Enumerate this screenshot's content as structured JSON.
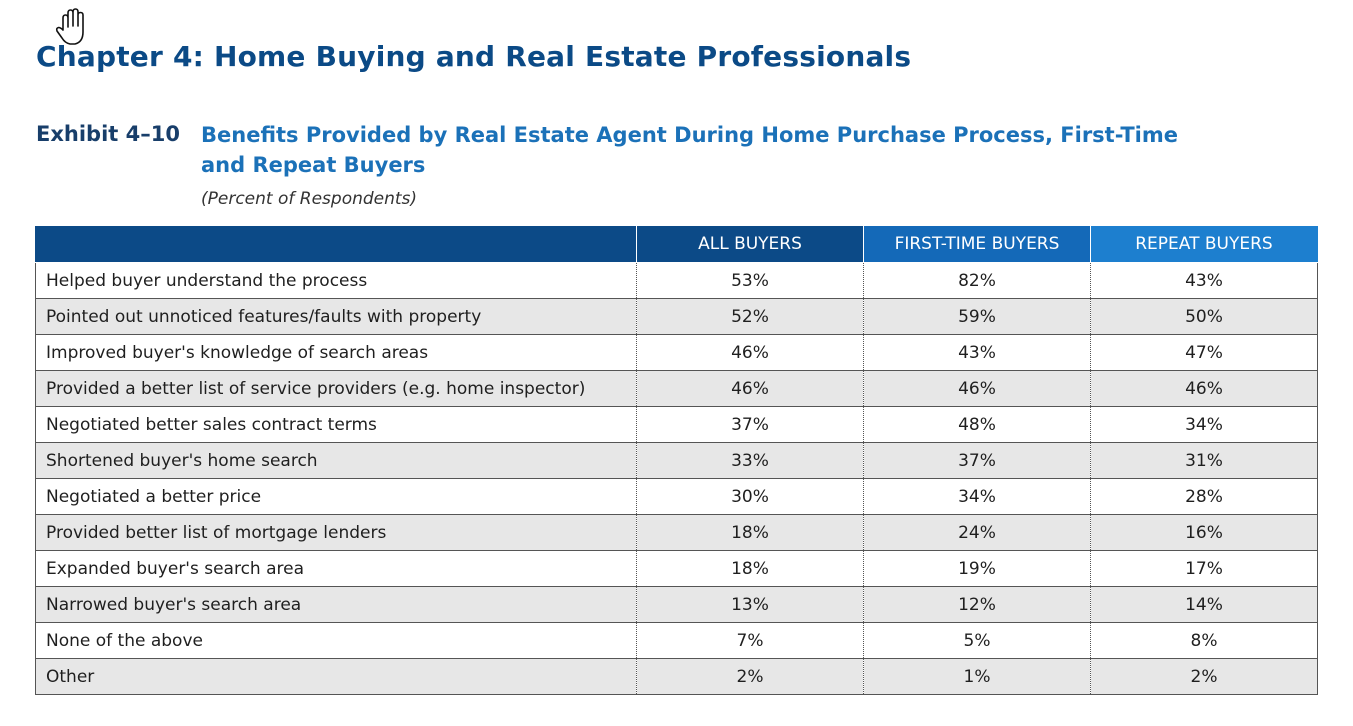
{
  "chapter_title": "Chapter 4:  Home Buying and Real Estate Professionals",
  "exhibit": {
    "label": "Exhibit 4–10",
    "title": "Benefits Provided by Real Estate Agent During Home Purchase Process, First-Time and Repeat Buyers",
    "subtitle": "(Percent of Respondents)"
  },
  "table": {
    "columns": [
      "",
      "ALL BUYERS",
      "FIRST-TIME BUYERS",
      "REPEAT BUYERS"
    ],
    "rows": [
      {
        "label": "Helped buyer understand the process",
        "all": "53%",
        "first": "82%",
        "repeat": "43%"
      },
      {
        "label": "Pointed out unnoticed features/faults with property",
        "all": "52%",
        "first": "59%",
        "repeat": "50%"
      },
      {
        "label": "Improved buyer's knowledge of search areas",
        "all": "46%",
        "first": "43%",
        "repeat": "47%"
      },
      {
        "label": "Provided a better list of service providers (e.g. home inspector)",
        "all": "46%",
        "first": "46%",
        "repeat": "46%"
      },
      {
        "label": "Negotiated better sales contract terms",
        "all": "37%",
        "first": "48%",
        "repeat": "34%"
      },
      {
        "label": "Shortened buyer's home search",
        "all": "33%",
        "first": "37%",
        "repeat": "31%"
      },
      {
        "label": "Negotiated a better price",
        "all": "30%",
        "first": "34%",
        "repeat": "28%"
      },
      {
        "label": "Provided better list of mortgage lenders",
        "all": "18%",
        "first": "24%",
        "repeat": "16%"
      },
      {
        "label": "Expanded buyer's search area",
        "all": "18%",
        "first": "19%",
        "repeat": "17%"
      },
      {
        "label": "Narrowed buyer's search area",
        "all": "13%",
        "first": "12%",
        "repeat": "14%"
      },
      {
        "label": "None of the above",
        "all": "7%",
        "first": "5%",
        "repeat": "8%"
      },
      {
        "label": "Other",
        "all": "2%",
        "first": "1%",
        "repeat": "2%"
      }
    ]
  },
  "colors": {
    "chapter_title": "#0b4a86",
    "exhibit_title": "#1b71b8",
    "header_all": "#0c4a87",
    "header_first": "#1469b8",
    "header_repeat": "#1d7fcf",
    "row_alt": "#e7e7e7"
  },
  "icons": {
    "cursor": "hand-pointer-icon"
  }
}
